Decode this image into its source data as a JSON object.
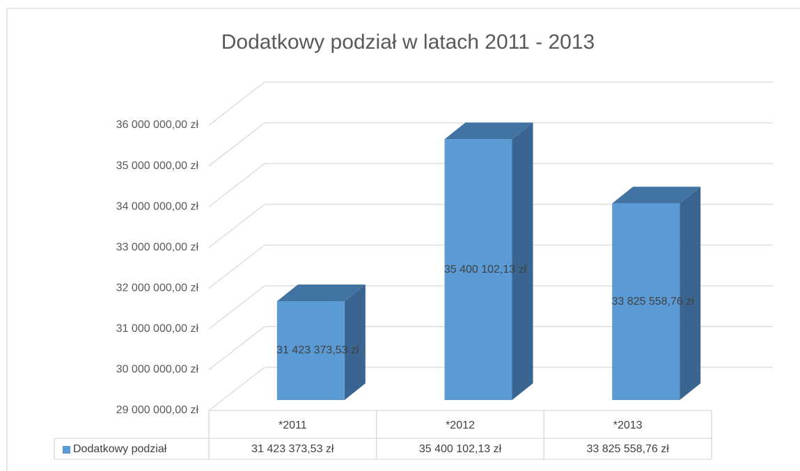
{
  "chart_data": {
    "type": "bar3d",
    "title": "Dodatkowy podział w latach 2011 - 2013",
    "categories": [
      "*2011",
      "*2012",
      "*2013"
    ],
    "series": [
      {
        "name": "Dodatkowy podział",
        "color": "#5b9bd5",
        "values": [
          31423373.53,
          35400102.13,
          33825558.76
        ],
        "value_labels": [
          "31 423 373,53 zł",
          "35 400 102,13 zł",
          "33 825 558,76 zł"
        ]
      }
    ],
    "ylim": [
      29000000,
      36000000
    ],
    "yticks": [
      {
        "value": 29000000,
        "label": "29 000 000,00 zł"
      },
      {
        "value": 30000000,
        "label": "30 000 000,00 zł"
      },
      {
        "value": 31000000,
        "label": "31 000 000,00 zł"
      },
      {
        "value": 32000000,
        "label": "32 000 000,00 zł"
      },
      {
        "value": 33000000,
        "label": "33 000 000,00 zł"
      },
      {
        "value": 34000000,
        "label": "34 000 000,00 zł"
      },
      {
        "value": 35000000,
        "label": "35 000 000,00 zł"
      },
      {
        "value": 36000000,
        "label": "36 000 000,00 zł"
      }
    ],
    "grid": true,
    "data_table": true
  }
}
